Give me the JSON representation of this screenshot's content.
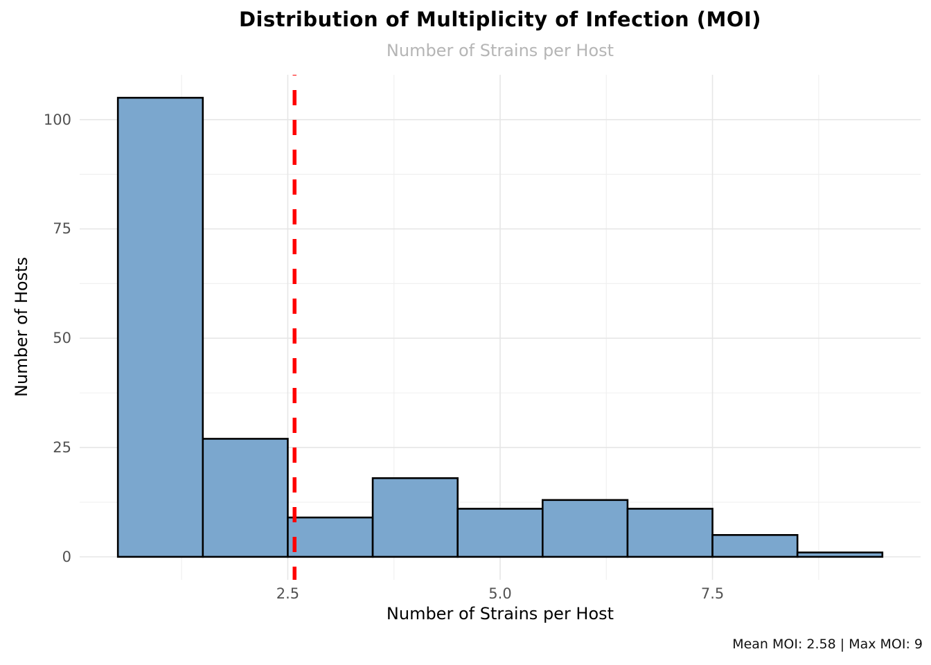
{
  "chart_data": {
    "type": "bar",
    "subtype": "histogram",
    "title": "Distribution of Multiplicity of Infection (MOI)",
    "subtitle": "Number of Strains per Host",
    "xlabel": "Number of Strains per Host",
    "ylabel": "Number of Hosts",
    "caption": "Mean MOI: 2.58 | Max MOI: 9",
    "categories": [
      1,
      2,
      3,
      4,
      5,
      6,
      7,
      8,
      9
    ],
    "values": [
      105,
      27,
      9,
      18,
      11,
      13,
      11,
      5,
      1
    ],
    "bin_width": 1,
    "bin_edges": [
      0.5,
      1.5,
      2.5,
      3.5,
      4.5,
      5.5,
      6.5,
      7.5,
      8.5,
      9.5
    ],
    "xlim": [
      0.05,
      9.95
    ],
    "ylim": [
      -5.25,
      110.25
    ],
    "x_ticks": [
      {
        "value": 2.5,
        "label": "2.5"
      },
      {
        "value": 5.0,
        "label": "5.0"
      },
      {
        "value": 7.5,
        "label": "7.5"
      }
    ],
    "y_ticks": [
      {
        "value": 0,
        "label": "0"
      },
      {
        "value": 25,
        "label": "25"
      },
      {
        "value": 50,
        "label": "50"
      },
      {
        "value": 75,
        "label": "75"
      },
      {
        "value": 100,
        "label": "100"
      }
    ],
    "x_minor_gridlines": [
      1.25,
      3.75,
      6.25,
      8.75
    ],
    "y_minor_gridlines": [
      12.5,
      37.5,
      62.5,
      87.5
    ],
    "grid": true,
    "legend": "none",
    "mean_line": {
      "x": 2.58,
      "style": "dashed",
      "orientation": "vertical"
    },
    "stats": {
      "mean_moi": 2.58,
      "max_moi": 9
    },
    "colors": {
      "bar_fill": "#7BA7CE",
      "bar_edge": "#000000",
      "grid_major": "#e6e6e6",
      "grid_minor": "#f0f0f0",
      "tick_label": "#525252",
      "subtitle": "#b5b5b5",
      "mean_line": "#ff0000",
      "background": "#ffffff"
    }
  }
}
